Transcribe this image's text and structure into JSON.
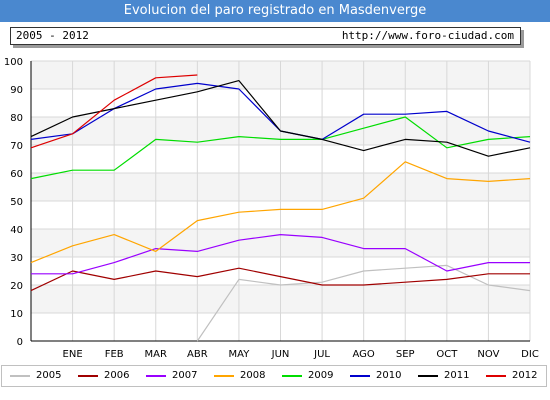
{
  "header": {
    "title": "Evolucion del paro registrado en Masdenverge",
    "period": "2005 - 2012",
    "url": "http://www.foro-ciudad.com"
  },
  "chart_data": {
    "type": "line",
    "title": "Evolucion del paro registrado en Masdenverge",
    "xlabel": "",
    "ylabel": "",
    "categories": [
      "",
      "ENE",
      "FEB",
      "MAR",
      "ABR",
      "MAY",
      "JUN",
      "JUL",
      "AGO",
      "SEP",
      "OCT",
      "NOV",
      "DIC"
    ],
    "ylim": [
      0,
      100
    ],
    "yticks": [
      0,
      10,
      20,
      30,
      40,
      50,
      60,
      70,
      80,
      90,
      100
    ],
    "grid": true,
    "legend_position": "bottom",
    "series": [
      {
        "name": "2005",
        "color": "#c0c0c0",
        "values": [
          null,
          null,
          null,
          null,
          0,
          22,
          20,
          21,
          25,
          26,
          27,
          20,
          18
        ]
      },
      {
        "name": "2006",
        "color": "#a00000",
        "values": [
          18,
          25,
          22,
          25,
          23,
          26,
          23,
          20,
          20,
          21,
          22,
          24,
          24
        ]
      },
      {
        "name": "2007",
        "color": "#9900ff",
        "values": [
          24,
          24,
          28,
          33,
          32,
          36,
          38,
          37,
          33,
          33,
          25,
          28,
          28
        ]
      },
      {
        "name": "2008",
        "color": "#ffa500",
        "values": [
          28,
          34,
          38,
          32,
          43,
          46,
          47,
          47,
          51,
          64,
          58,
          57,
          58
        ]
      },
      {
        "name": "2009",
        "color": "#00dd00",
        "values": [
          58,
          61,
          61,
          72,
          71,
          73,
          72,
          72,
          76,
          80,
          69,
          72,
          73
        ]
      },
      {
        "name": "2010",
        "color": "#0000cc",
        "values": [
          72,
          74,
          83,
          90,
          92,
          90,
          75,
          72,
          81,
          81,
          82,
          75,
          71
        ]
      },
      {
        "name": "2011",
        "color": "#000000",
        "values": [
          73,
          80,
          83,
          86,
          89,
          93,
          75,
          72,
          68,
          72,
          71,
          66,
          69
        ]
      },
      {
        "name": "2012",
        "color": "#dd0000",
        "values": [
          69,
          74,
          86,
          94,
          95,
          null,
          null,
          null,
          null,
          null,
          null,
          null,
          null
        ]
      }
    ]
  }
}
